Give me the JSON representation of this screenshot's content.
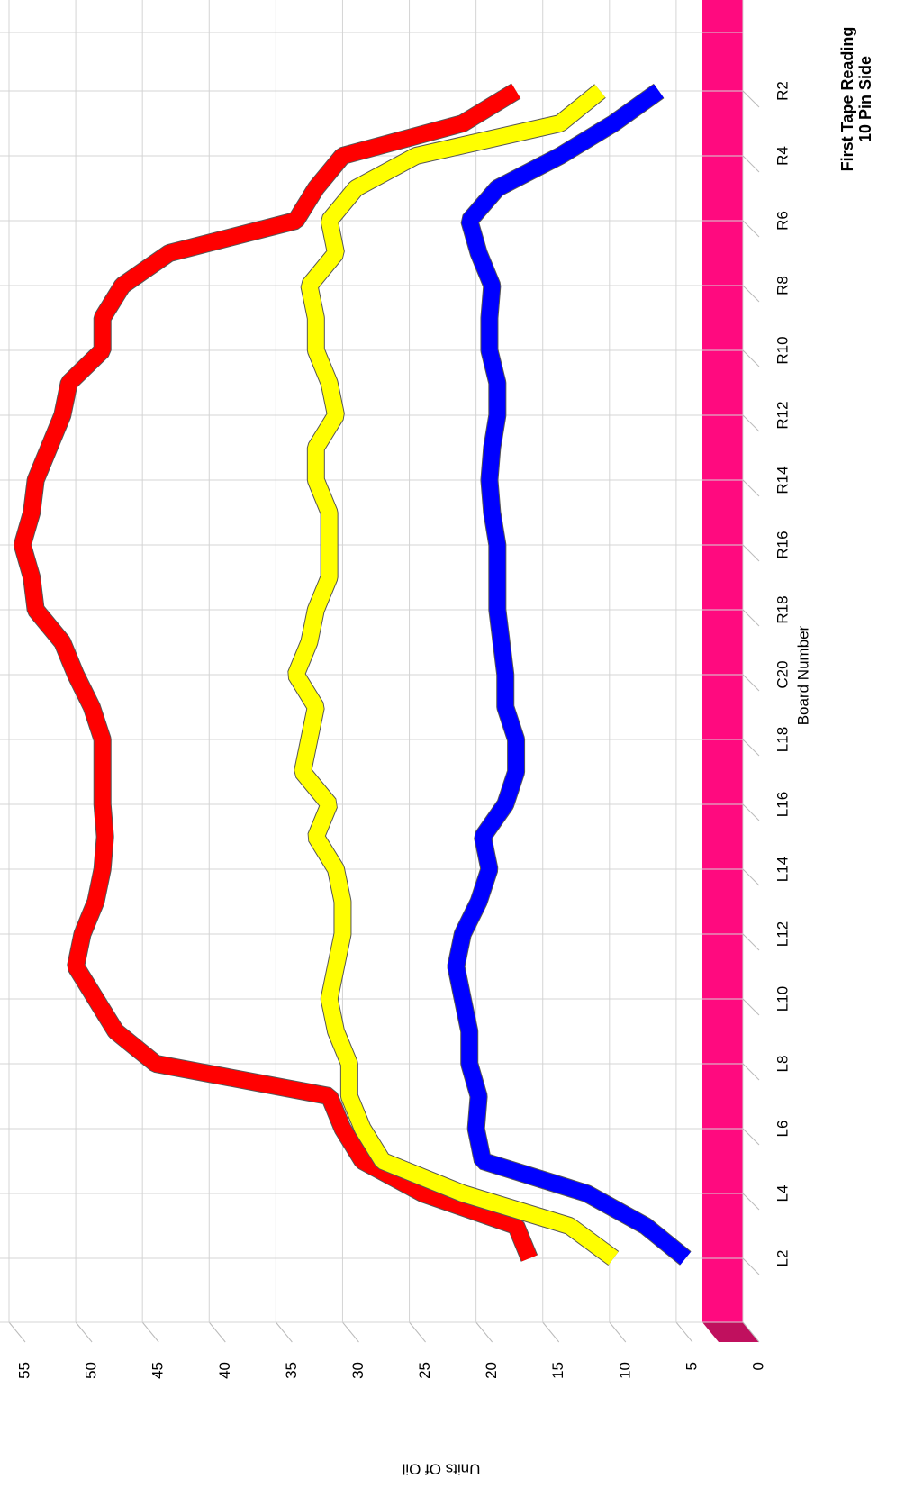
{
  "chart_data": {
    "type": "line",
    "title": "First Tape Reading",
    "subtitle": "10 Pin Side",
    "x_label": "Board Number",
    "y_label": "Units Of Oil",
    "categories": [
      "L2",
      null,
      "L4",
      null,
      "L6",
      null,
      "L8",
      null,
      "L10",
      null,
      "L12",
      null,
      "L14",
      null,
      "L16",
      null,
      "L18",
      null,
      "C20",
      null,
      "R18",
      null,
      "R16",
      null,
      "R14",
      null,
      "R12",
      null,
      "R10",
      null,
      "R8",
      null,
      "R6",
      null,
      "R4",
      null,
      "R2"
    ],
    "series": [
      {
        "name": "Red",
        "color": "#ff0000",
        "values": [
          16,
          17,
          24,
          28.5,
          30,
          31,
          44,
          47,
          48.5,
          50,
          49.5,
          48.5,
          48,
          47.8,
          48,
          48,
          48,
          48.8,
          50,
          51,
          53,
          53.3,
          54,
          53.3,
          53,
          52,
          51,
          50.5,
          48,
          48,
          46.5,
          43,
          33.5,
          32,
          30,
          21,
          17
        ]
      },
      {
        "name": "Yellow",
        "color": "#ffff00",
        "values": [
          9.7,
          13,
          21,
          27,
          28.5,
          29.5,
          29.5,
          30.5,
          31,
          30.5,
          30,
          30,
          30.5,
          32,
          31,
          33,
          32.5,
          32,
          33.5,
          32.5,
          32,
          31,
          31,
          31,
          32,
          32,
          30.5,
          31,
          32,
          32,
          32.5,
          30.5,
          31,
          29,
          24.5,
          13.7,
          10.7
        ]
      },
      {
        "name": "Blue",
        "color": "#0000ff",
        "values": [
          4.3,
          7.3,
          11.7,
          19.5,
          20,
          19.8,
          20.5,
          20.5,
          21,
          21.5,
          21,
          19.8,
          19,
          19.5,
          17.8,
          17,
          17,
          17.8,
          17.8,
          18.1,
          18.4,
          18.4,
          18.4,
          18.8,
          19,
          18.8,
          18.4,
          18.4,
          19,
          19,
          18.8,
          19.8,
          20.5,
          18.4,
          13.7,
          9.7,
          6.3
        ]
      }
    ],
    "ylim": [
      0,
      55
    ],
    "yticks": [
      0,
      5,
      10,
      15,
      20,
      25,
      30,
      35,
      40,
      45,
      50,
      55
    ],
    "grid": true,
    "floor_color": "#ff0a7f"
  }
}
